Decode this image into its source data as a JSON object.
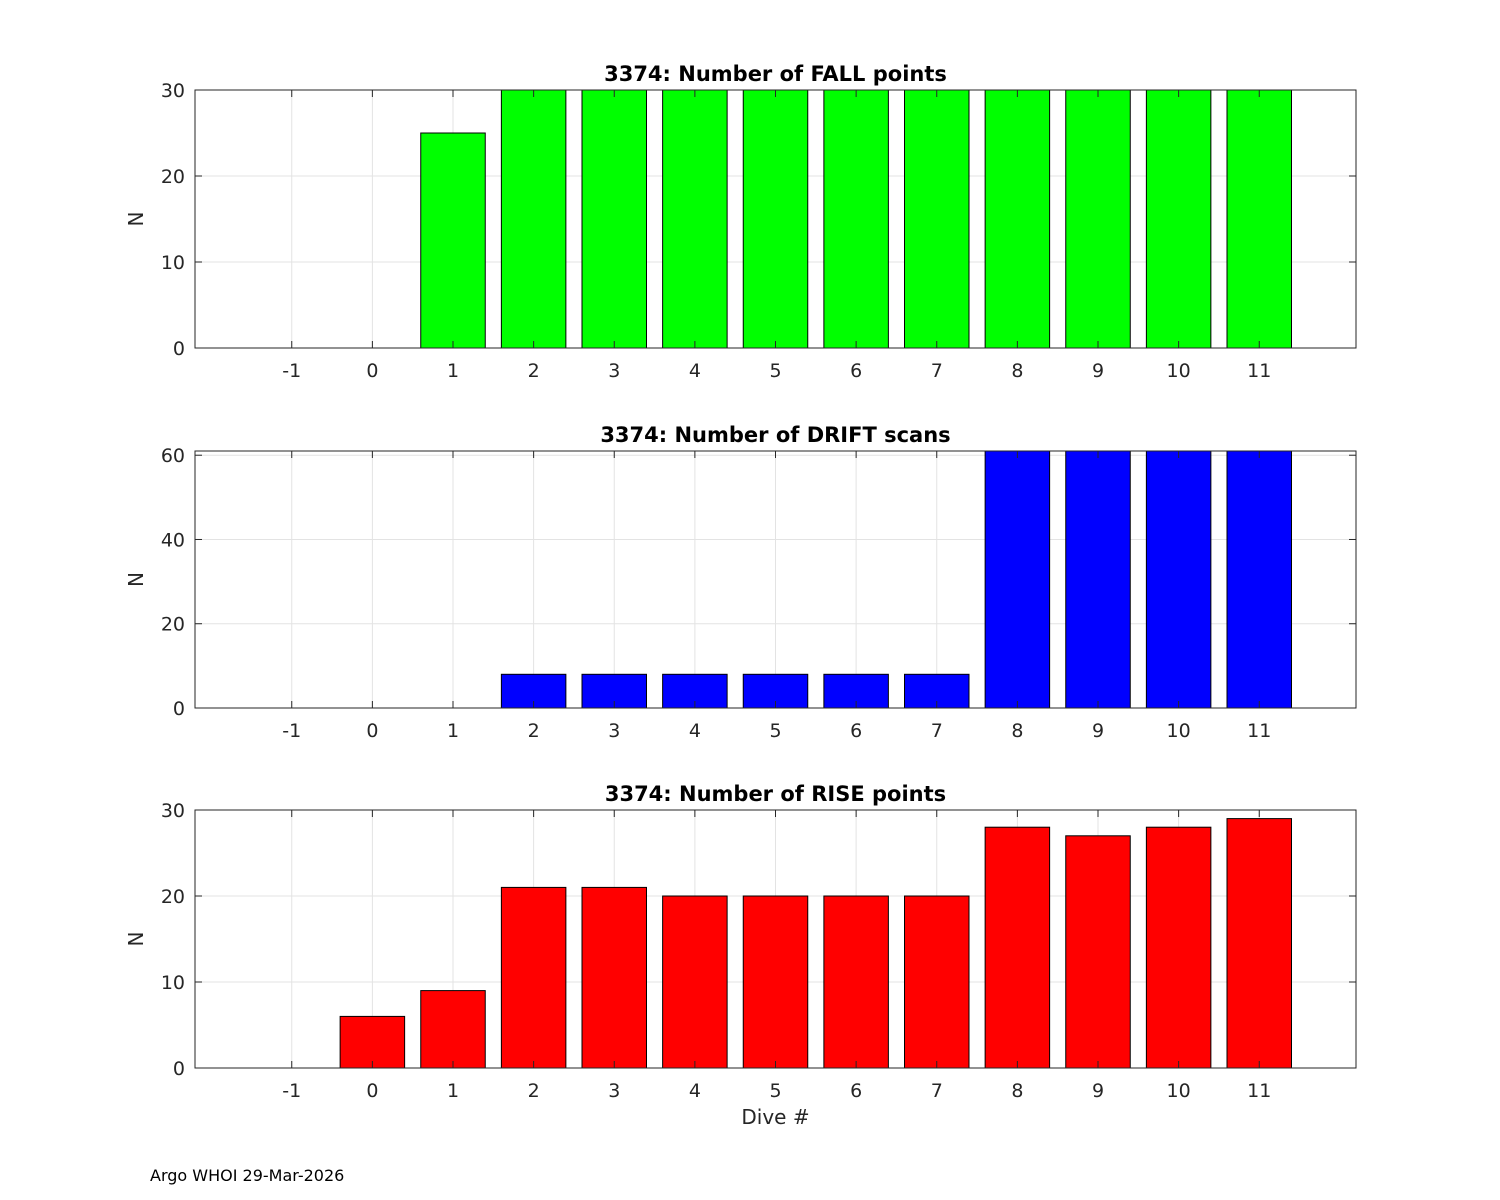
{
  "footer": "Argo WHOI 29-Mar-2026",
  "chart_data": [
    {
      "type": "bar",
      "title": "3374: Number of FALL points",
      "xlabel": "",
      "ylabel": "N",
      "categories": [
        "-1",
        "0",
        "1",
        "2",
        "3",
        "4",
        "5",
        "6",
        "7",
        "8",
        "9",
        "10",
        "11"
      ],
      "x": [
        -1,
        0,
        1,
        2,
        3,
        4,
        5,
        6,
        7,
        8,
        9,
        10,
        11
      ],
      "values": [
        0,
        0,
        25,
        30,
        30,
        30,
        30,
        30,
        30,
        30,
        30,
        30,
        30
      ],
      "xlim": [
        -2.2,
        12.2
      ],
      "ylim": [
        0,
        30
      ],
      "yticks": [
        0,
        10,
        20,
        30
      ],
      "grid": true,
      "color": "#00ff00"
    },
    {
      "type": "bar",
      "title": "3374: Number of DRIFT scans",
      "xlabel": "",
      "ylabel": "N",
      "categories": [
        "-1",
        "0",
        "1",
        "2",
        "3",
        "4",
        "5",
        "6",
        "7",
        "8",
        "9",
        "10",
        "11"
      ],
      "x": [
        -1,
        0,
        1,
        2,
        3,
        4,
        5,
        6,
        7,
        8,
        9,
        10,
        11
      ],
      "values": [
        0,
        0,
        0,
        8,
        8,
        8,
        8,
        8,
        8,
        61,
        61,
        61,
        61
      ],
      "xlim": [
        -2.2,
        12.2
      ],
      "ylim": [
        0,
        61
      ],
      "yticks": [
        0,
        20,
        40,
        60
      ],
      "grid": true,
      "color": "#0000ff"
    },
    {
      "type": "bar",
      "title": "3374: Number of RISE points",
      "xlabel": "Dive #",
      "ylabel": "N",
      "categories": [
        "-1",
        "0",
        "1",
        "2",
        "3",
        "4",
        "5",
        "6",
        "7",
        "8",
        "9",
        "10",
        "11"
      ],
      "x": [
        -1,
        0,
        1,
        2,
        3,
        4,
        5,
        6,
        7,
        8,
        9,
        10,
        11
      ],
      "values": [
        0,
        6,
        9,
        21,
        21,
        20,
        20,
        20,
        20,
        28,
        27,
        28,
        29
      ],
      "xlim": [
        -2.2,
        12.2
      ],
      "ylim": [
        0,
        30
      ],
      "yticks": [
        0,
        10,
        20,
        30
      ],
      "grid": true,
      "color": "#ff0000"
    }
  ]
}
